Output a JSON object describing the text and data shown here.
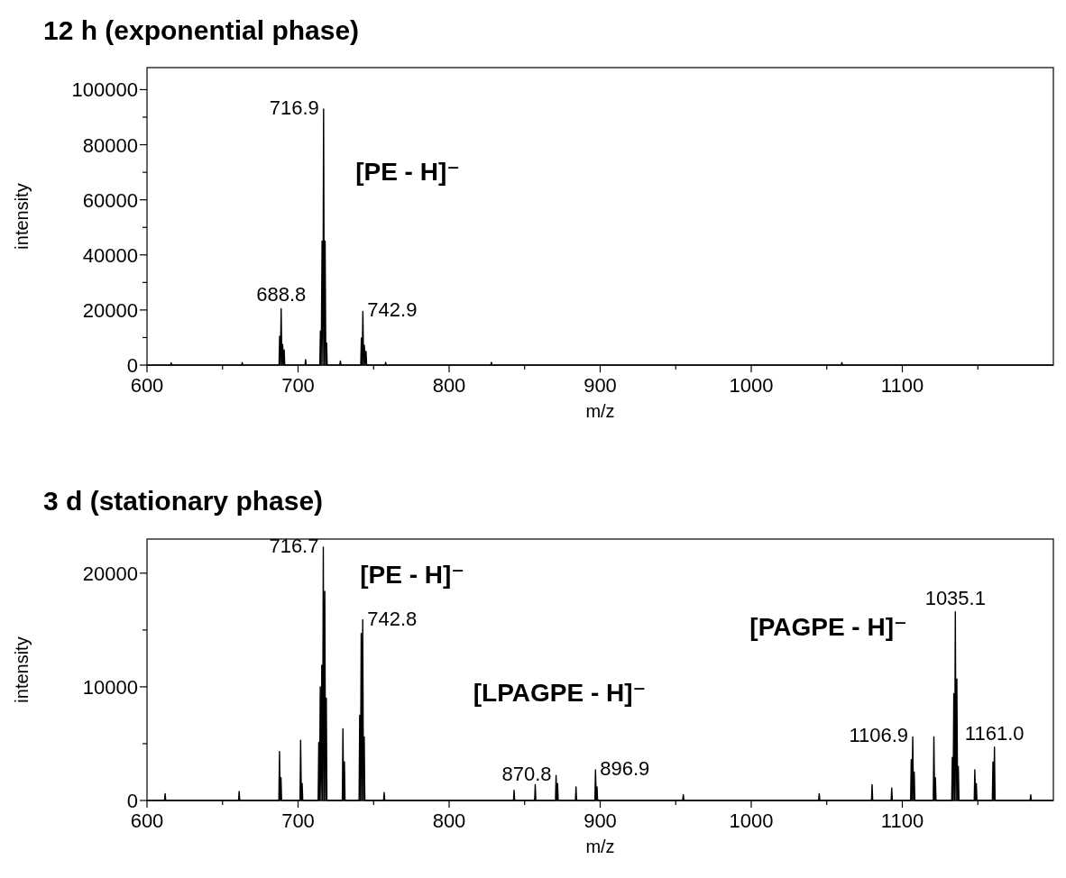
{
  "chart_data": [
    {
      "type": "line",
      "title": "12 h (exponential phase)",
      "xlabel": "m/z",
      "ylabel": "intensity",
      "xlim": [
        600,
        1200
      ],
      "ylim": [
        0,
        108000
      ],
      "xticks": [
        600,
        {
          "value": 650,
          "label": null
        },
        700,
        {
          "value": 750,
          "label": null
        },
        800,
        {
          "value": 850,
          "label": null
        },
        900,
        {
          "value": 950,
          "label": null
        },
        1000,
        {
          "value": 1050,
          "label": null
        },
        1100,
        {
          "value": 1150,
          "label": null
        }
      ],
      "yticks": [
        0,
        {
          "value": 10000,
          "label": null
        },
        20000,
        {
          "value": 30000,
          "label": null
        },
        40000,
        {
          "value": 50000,
          "label": null
        },
        60000,
        {
          "value": 70000,
          "label": null
        },
        80000,
        {
          "value": 90000,
          "label": null
        },
        100000
      ],
      "grid": false,
      "marker": "none",
      "line_style": "solid",
      "series": [
        {
          "color": "#000000",
          "x": [
            600,
            615.6,
            616,
            616.4,
            662.6,
            663,
            663.4,
            687.4,
            687.8,
            688.3,
            688.8,
            689.3,
            689.8,
            690.3,
            690.8,
            691.2,
            704.6,
            705,
            705.4,
            714.4,
            714.8,
            715.3,
            715.9,
            716.4,
            716.9,
            717.4,
            717.9,
            718.4,
            718.9,
            719.3,
            727.6,
            728,
            728.4,
            741.5,
            741.9,
            742.4,
            742.9,
            743.4,
            743.9,
            744.4,
            745,
            745.4,
            757.6,
            758,
            758.4,
            827.6,
            828,
            828.4,
            1059.6,
            1060,
            1060.4,
            1200
          ],
          "values": [
            0,
            0,
            800,
            0,
            0,
            900,
            0,
            0,
            10500,
            0,
            20500,
            0,
            7500,
            0,
            5500,
            0,
            0,
            2000,
            0,
            0,
            12400,
            0,
            45000,
            0,
            93000,
            0,
            45000,
            0,
            8000,
            0,
            0,
            1500,
            0,
            0,
            9800,
            0,
            19500,
            0,
            7200,
            0,
            5000,
            0,
            0,
            1000,
            0,
            0,
            1000,
            0,
            0,
            900,
            0,
            0
          ]
        }
      ],
      "annotations": [
        {
          "text": "716.9",
          "x": 716.9,
          "y": 93000
        },
        {
          "text": "688.8",
          "x": 688.8,
          "y": 20500
        },
        {
          "text": "742.9",
          "x": 742.9,
          "y": 19500
        },
        "[PE - H]⁻"
      ]
    },
    {
      "type": "line",
      "title": "3 d (stationary phase)",
      "xlabel": "m/z",
      "ylabel": "intensity",
      "xlim": [
        600,
        1200
      ],
      "ylim": [
        0,
        23000
      ],
      "xticks": [
        600,
        {
          "value": 650,
          "label": null
        },
        700,
        {
          "value": 750,
          "label": null
        },
        800,
        {
          "value": 850,
          "label": null
        },
        900,
        {
          "value": 950,
          "label": null
        },
        1000,
        {
          "value": 1050,
          "label": null
        },
        1100,
        {
          "value": 1150,
          "label": null
        }
      ],
      "yticks": [
        0,
        {
          "value": 5000,
          "label": null
        },
        10000,
        {
          "value": 15000,
          "label": null
        },
        20000
      ],
      "grid": false,
      "marker": "none",
      "line_style": "solid",
      "series": [
        {
          "color": "#000000",
          "x": [
            600,
            611.6,
            612,
            612.4,
            660.6,
            661,
            661.4,
            687.3,
            687.7,
            688.2,
            688.7,
            689.1,
            701.3,
            701.7,
            702.2,
            702.7,
            703.1,
            713.3,
            713.7,
            714.2,
            714.7,
            715.2,
            715.7,
            716.2,
            716.7,
            717.2,
            717.7,
            718.2,
            718.7,
            719.1,
            729.3,
            729.7,
            730.2,
            730.7,
            731.1,
            740.4,
            740.8,
            741.3,
            741.8,
            742.3,
            742.8,
            743.3,
            743.8,
            744.2,
            756.6,
            757,
            757.4,
            842.6,
            843,
            843.4,
            856.6,
            857,
            857.4,
            870.4,
            870.8,
            871.3,
            871.8,
            872.2,
            883.6,
            884,
            884.4,
            896.5,
            896.9,
            897.4,
            897.9,
            898.3,
            954.6,
            955,
            955.4,
            1044.6,
            1045,
            1045.4,
            1079.6,
            1080,
            1080.4,
            1092.6,
            1093,
            1093.4,
            1105.5,
            1105.9,
            1106.4,
            1106.9,
            1107.4,
            1107.9,
            1108.3,
            1120.5,
            1120.9,
            1121.4,
            1121.9,
            1122.3,
            1132.7,
            1133.1,
            1133.6,
            1134.1,
            1134.6,
            1135.1,
            1135.6,
            1136.1,
            1136.6,
            1137.1,
            1137.5,
            1147.6,
            1148,
            1148.5,
            1149,
            1149.4,
            1159.6,
            1160,
            1160.5,
            1161,
            1161.4,
            1184.6,
            1185,
            1185.4,
            1200
          ],
          "values": [
            0,
            0,
            600,
            0,
            0,
            800,
            0,
            0,
            4300,
            0,
            2000,
            0,
            0,
            5300,
            0,
            1500,
            0,
            0,
            5100,
            0,
            10000,
            0,
            11900,
            0,
            22300,
            0,
            18400,
            0,
            9000,
            0,
            0,
            6300,
            0,
            3400,
            0,
            0,
            7500,
            0,
            14700,
            0,
            15900,
            0,
            5600,
            0,
            0,
            700,
            0,
            0,
            900,
            0,
            0,
            1400,
            0,
            0,
            2200,
            0,
            1500,
            0,
            0,
            1200,
            0,
            0,
            2700,
            0,
            1200,
            0,
            0,
            500,
            0,
            0,
            600,
            0,
            0,
            1400,
            0,
            0,
            1100,
            0,
            0,
            3600,
            0,
            5600,
            0,
            2500,
            0,
            0,
            5600,
            0,
            2000,
            0,
            0,
            3800,
            0,
            9400,
            0,
            16600,
            0,
            10700,
            0,
            3000,
            0,
            0,
            2700,
            0,
            1500,
            0,
            0,
            3400,
            0,
            4700,
            0,
            0,
            500,
            0,
            0
          ]
        }
      ],
      "annotations": [
        {
          "text": "716.7",
          "x": 716.7,
          "y": 22300
        },
        {
          "text": "742.8",
          "x": 742.8,
          "y": 15900
        },
        {
          "text": "870.8",
          "x": 870.8,
          "y": 2200
        },
        {
          "text": "896.9",
          "x": 896.9,
          "y": 2700
        },
        {
          "text": "1106.9",
          "x": 1106.9,
          "y": 5600
        },
        {
          "text": "1035.1",
          "x": 1135.1,
          "y": 16600
        },
        {
          "text": "1161.0",
          "x": 1161,
          "y": 4700
        },
        "[PE - H]⁻",
        "[PAGPE - H]⁻",
        "[LPAGPE - H]⁻"
      ]
    }
  ]
}
